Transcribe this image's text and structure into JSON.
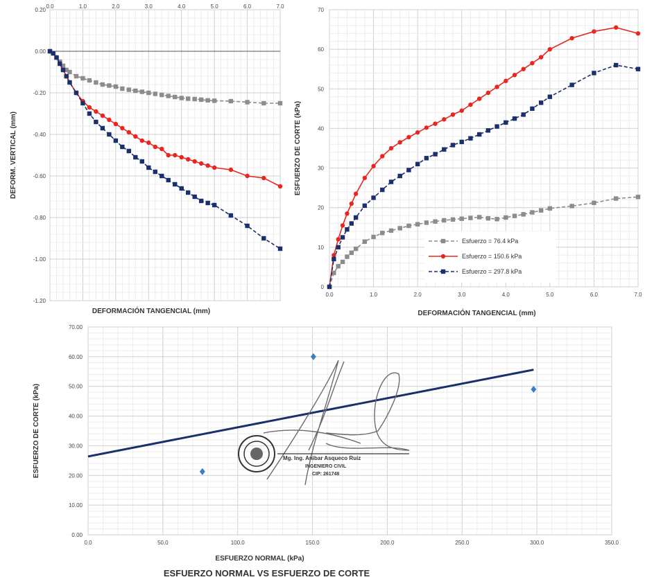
{
  "chart_data": [
    {
      "type": "line",
      "xlabel": "",
      "ylabel": "DEFORM. VERTICAL (mm)",
      "bottom_label": "DEFORMACIÓN TANGENCIAL (mm)",
      "xlim": [
        0,
        7
      ],
      "ylim": [
        -1.2,
        0.2
      ],
      "x_ticks": [
        "0.0",
        "1.0",
        "2.0",
        "3.0",
        "4.0",
        "5.0",
        "6.0",
        "7.0"
      ],
      "y_ticks": [
        "0.20",
        "0.00",
        "-0.20",
        "-0.40",
        "-0.60",
        "-0.80",
        "-1.00",
        "-1.20"
      ],
      "series": [
        {
          "color": "#8c8c8c",
          "marker": "square",
          "dash": true,
          "x": [
            0,
            0.1,
            0.2,
            0.3,
            0.4,
            0.5,
            0.6,
            0.8,
            1.0,
            1.2,
            1.4,
            1.6,
            1.8,
            2.0,
            2.2,
            2.4,
            2.6,
            2.8,
            3.0,
            3.2,
            3.4,
            3.6,
            3.8,
            4.0,
            4.2,
            4.4,
            4.6,
            4.8,
            5.0,
            5.5,
            6.0,
            6.5,
            7.0
          ],
          "y": [
            0,
            -0.01,
            -0.03,
            -0.05,
            -0.07,
            -0.09,
            -0.1,
            -0.12,
            -0.13,
            -0.14,
            -0.15,
            -0.16,
            -0.165,
            -0.17,
            -0.18,
            -0.185,
            -0.19,
            -0.195,
            -0.2,
            -0.205,
            -0.21,
            -0.215,
            -0.22,
            -0.225,
            -0.228,
            -0.23,
            -0.233,
            -0.236,
            -0.238,
            -0.24,
            -0.245,
            -0.25,
            -0.25
          ]
        },
        {
          "color": "#e8261f",
          "marker": "circle",
          "dash": false,
          "x": [
            0,
            0.1,
            0.2,
            0.3,
            0.4,
            0.5,
            0.6,
            0.8,
            1.0,
            1.2,
            1.4,
            1.6,
            1.8,
            2.0,
            2.2,
            2.4,
            2.6,
            2.8,
            3.0,
            3.2,
            3.4,
            3.6,
            3.8,
            4.0,
            4.2,
            4.4,
            4.6,
            4.8,
            5.0,
            5.5,
            6.0,
            6.5,
            7.0
          ],
          "y": [
            0,
            -0.01,
            -0.03,
            -0.06,
            -0.09,
            -0.12,
            -0.15,
            -0.2,
            -0.24,
            -0.27,
            -0.29,
            -0.31,
            -0.33,
            -0.35,
            -0.37,
            -0.39,
            -0.41,
            -0.43,
            -0.44,
            -0.46,
            -0.47,
            -0.5,
            -0.5,
            -0.51,
            -0.52,
            -0.53,
            -0.54,
            -0.55,
            -0.56,
            -0.57,
            -0.6,
            -0.61,
            -0.65
          ]
        },
        {
          "color": "#1a2f6b",
          "marker": "square",
          "dash": true,
          "x": [
            0,
            0.1,
            0.2,
            0.3,
            0.4,
            0.5,
            0.6,
            0.8,
            1.0,
            1.2,
            1.4,
            1.6,
            1.8,
            2.0,
            2.2,
            2.4,
            2.6,
            2.8,
            3.0,
            3.2,
            3.4,
            3.6,
            3.8,
            4.0,
            4.2,
            4.4,
            4.6,
            4.8,
            5.0,
            5.5,
            6.0,
            6.5,
            7.0
          ],
          "y": [
            0,
            -0.01,
            -0.03,
            -0.06,
            -0.09,
            -0.12,
            -0.15,
            -0.2,
            -0.25,
            -0.3,
            -0.34,
            -0.37,
            -0.4,
            -0.43,
            -0.46,
            -0.48,
            -0.51,
            -0.53,
            -0.56,
            -0.58,
            -0.6,
            -0.62,
            -0.64,
            -0.66,
            -0.68,
            -0.7,
            -0.72,
            -0.73,
            -0.74,
            -0.79,
            -0.84,
            -0.9,
            -0.95
          ]
        }
      ]
    },
    {
      "type": "line",
      "ylabel": "ESFUERZO DE CORTE (kPa)",
      "xlabel": "DEFORMACIÓN TANGENCIAL (mm)",
      "xlim": [
        0,
        7
      ],
      "ylim": [
        0,
        70
      ],
      "x_ticks": [
        "0.0",
        "1.0",
        "2.0",
        "3.0",
        "4.0",
        "5.0",
        "6.0",
        "7.0"
      ],
      "y_ticks": [
        "0",
        "10",
        "20",
        "30",
        "40",
        "50",
        "60",
        "70"
      ],
      "legend_position": "bottom-center",
      "series": [
        {
          "name": "Esfuerzo = 76.4 kPa",
          "color": "#8c8c8c",
          "marker": "square",
          "dash": true,
          "x": [
            0,
            0.1,
            0.2,
            0.3,
            0.4,
            0.5,
            0.6,
            0.8,
            1.0,
            1.2,
            1.4,
            1.6,
            1.8,
            2.0,
            2.2,
            2.4,
            2.6,
            2.8,
            3.0,
            3.2,
            3.4,
            3.6,
            3.8,
            4.0,
            4.2,
            4.4,
            4.6,
            4.8,
            5.0,
            5.5,
            6.0,
            6.5,
            7.0
          ],
          "y": [
            0,
            3.5,
            5.2,
            6.3,
            7.6,
            8.6,
            9.6,
            11.4,
            12.6,
            13.6,
            14.2,
            14.8,
            15.4,
            15.8,
            16.2,
            16.5,
            16.8,
            17.0,
            17.2,
            17.4,
            17.6,
            17.3,
            17.1,
            17.5,
            17.9,
            18.3,
            18.8,
            19.3,
            19.8,
            20.4,
            21.2,
            22.3,
            22.7
          ]
        },
        {
          "name": "Esfuerzo = 150.6 kPa",
          "color": "#e8261f",
          "marker": "circle",
          "dash": false,
          "x": [
            0,
            0.1,
            0.2,
            0.3,
            0.4,
            0.5,
            0.6,
            0.8,
            1.0,
            1.2,
            1.4,
            1.6,
            1.8,
            2.0,
            2.2,
            2.4,
            2.6,
            2.8,
            3.0,
            3.2,
            3.4,
            3.6,
            3.8,
            4.0,
            4.2,
            4.4,
            4.6,
            4.8,
            5.0,
            5.5,
            6.0,
            6.5,
            7.0
          ],
          "y": [
            0,
            8,
            12,
            15.5,
            18.5,
            21,
            23.5,
            27.5,
            30.5,
            33,
            35,
            36.5,
            37.8,
            39,
            40.2,
            41.2,
            42.3,
            43.5,
            44.5,
            46,
            47.5,
            49,
            50.5,
            52,
            53.5,
            55,
            56.5,
            58,
            60,
            62.8,
            64.5,
            65.5,
            64
          ]
        },
        {
          "name": "Esfuerzo = 297.8 kPa",
          "color": "#1a2f6b",
          "marker": "square",
          "dash": true,
          "x": [
            0,
            0.1,
            0.2,
            0.3,
            0.4,
            0.5,
            0.6,
            0.8,
            1.0,
            1.2,
            1.4,
            1.6,
            1.8,
            2.0,
            2.2,
            2.4,
            2.6,
            2.8,
            3.0,
            3.2,
            3.4,
            3.6,
            3.8,
            4.0,
            4.2,
            4.4,
            4.6,
            4.8,
            5.0,
            5.5,
            6.0,
            6.5,
            7.0
          ],
          "y": [
            0,
            7,
            10,
            12.5,
            14.5,
            16,
            17.5,
            20.5,
            22.5,
            24.5,
            26.5,
            28,
            29.5,
            31,
            32.5,
            33.5,
            34.7,
            35.8,
            36.6,
            37.5,
            38.5,
            39.5,
            40.5,
            41.5,
            42.5,
            43.5,
            45,
            46.5,
            48,
            51,
            54,
            56,
            55
          ]
        }
      ]
    },
    {
      "type": "scatter",
      "title": "ESFUERZO NORMAL VS ESFUERZO DE CORTE",
      "xlabel": "ESFUERZO NORMAL (kPa)",
      "ylabel": "ESFUERZO DE CORTE (kPa)",
      "xlim": [
        0,
        350
      ],
      "ylim": [
        0,
        70
      ],
      "x_ticks": [
        "0.0",
        "50.0",
        "100.0",
        "150.0",
        "200.0",
        "250.0",
        "300.0",
        "350.0"
      ],
      "y_ticks": [
        "0.00",
        "10.00",
        "20.00",
        "30.00",
        "40.00",
        "50.00",
        "60.00",
        "70.00"
      ],
      "points": {
        "x": [
          76.4,
          150.6,
          297.8
        ],
        "y": [
          21.3,
          60.0,
          49.0
        ],
        "color": "#3a7fc4"
      },
      "trendline": {
        "x": [
          0,
          297.8
        ],
        "y": [
          26.4,
          55.6
        ],
        "color": "#1a2f6b"
      }
    }
  ],
  "stamp": {
    "name": "Mg. Ing. Anibar Asqueco Ruiz",
    "role": "INGENIERO CIVIL",
    "cip": "CIP: 261748"
  }
}
